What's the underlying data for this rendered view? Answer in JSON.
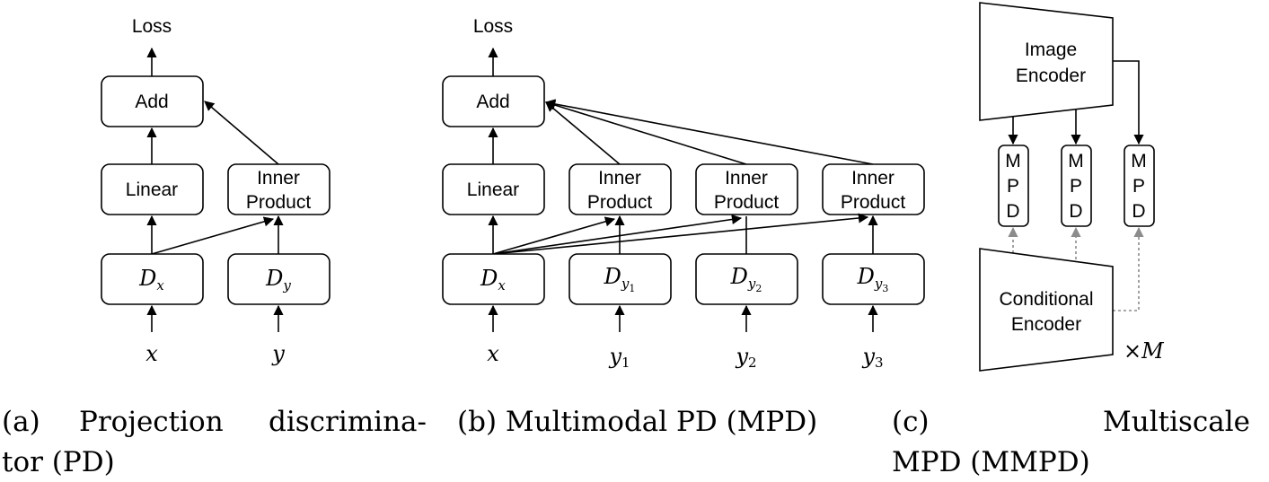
{
  "panel_a": {
    "loss": "Loss",
    "add": "Add",
    "linear": "Linear",
    "inner_product": [
      "Inner",
      "Product"
    ],
    "dx": {
      "base": "D",
      "sub": "x"
    },
    "dy": {
      "base": "D",
      "sub": "y"
    },
    "input_x": "x",
    "input_y": "y"
  },
  "panel_b": {
    "loss": "Loss",
    "add": "Add",
    "linear": "Linear",
    "inner_product": [
      "Inner",
      "Product"
    ],
    "dx": {
      "base": "D",
      "sub": "x"
    },
    "dy": [
      {
        "base": "D",
        "sub": "y",
        "subsub": "1"
      },
      {
        "base": "D",
        "sub": "y",
        "subsub": "2"
      },
      {
        "base": "D",
        "sub": "y",
        "subsub": "3"
      }
    ],
    "input_x": "x",
    "inputs_y": [
      {
        "base": "y",
        "sub": "1"
      },
      {
        "base": "y",
        "sub": "2"
      },
      {
        "base": "y",
        "sub": "3"
      }
    ]
  },
  "panel_c": {
    "image_encoder": [
      "Image",
      "Encoder"
    ],
    "conditional_encoder": [
      "Conditional",
      "Encoder"
    ],
    "mpd_letters": [
      "M",
      "P",
      "D"
    ],
    "multiplier": {
      "times": "×",
      "var": "M"
    }
  },
  "captions": {
    "a_line1_tag": "(a)",
    "a_line1_word1": "Projection",
    "a_line1_word2": "discrimina-",
    "a_line2": "tor (PD)",
    "b": "(b) Multimodal PD (MPD)",
    "c_line1_tag": "(c)",
    "c_line1_word": "Multiscale",
    "c_line2": "MPD (MMPD)"
  }
}
